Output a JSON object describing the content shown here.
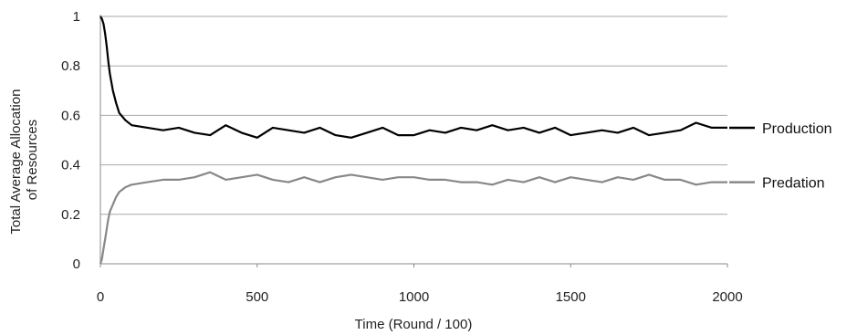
{
  "chart_data": {
    "type": "line",
    "title": "",
    "xlabel": "Time (Round / 100)",
    "ylabel_lines": [
      "Total Average Allocation",
      "of Resources"
    ],
    "xlim": [
      0,
      2000
    ],
    "ylim": [
      0,
      1
    ],
    "xticks": [
      "0",
      "500",
      "1000",
      "1500",
      "2000"
    ],
    "yticks": [
      "0",
      "0.2",
      "0.4",
      "0.6",
      "0.8",
      "1"
    ],
    "grid": "horizontal",
    "legend_placement": "right, inline labels",
    "series": [
      {
        "name": "Production",
        "color": "#000000",
        "x": [
          0,
          5,
          10,
          15,
          20,
          25,
          30,
          40,
          50,
          60,
          80,
          100,
          150,
          200,
          250,
          300,
          350,
          400,
          450,
          500,
          550,
          600,
          650,
          700,
          750,
          800,
          850,
          900,
          950,
          1000,
          1050,
          1100,
          1150,
          1200,
          1250,
          1300,
          1350,
          1400,
          1450,
          1500,
          1550,
          1600,
          1650,
          1700,
          1750,
          1800,
          1850,
          1900,
          1950,
          2000
        ],
        "values": [
          1.0,
          0.99,
          0.97,
          0.93,
          0.88,
          0.82,
          0.77,
          0.7,
          0.65,
          0.61,
          0.58,
          0.56,
          0.55,
          0.54,
          0.55,
          0.53,
          0.52,
          0.56,
          0.53,
          0.51,
          0.55,
          0.54,
          0.53,
          0.55,
          0.52,
          0.51,
          0.53,
          0.55,
          0.52,
          0.52,
          0.54,
          0.53,
          0.55,
          0.54,
          0.56,
          0.54,
          0.55,
          0.53,
          0.55,
          0.52,
          0.53,
          0.54,
          0.53,
          0.55,
          0.52,
          0.53,
          0.54,
          0.57,
          0.55,
          0.55
        ]
      },
      {
        "name": "Predation",
        "color": "#888888",
        "x": [
          0,
          5,
          10,
          15,
          20,
          25,
          30,
          40,
          50,
          60,
          80,
          100,
          150,
          200,
          250,
          300,
          350,
          400,
          450,
          500,
          550,
          600,
          650,
          700,
          750,
          800,
          850,
          900,
          950,
          1000,
          1050,
          1100,
          1150,
          1200,
          1250,
          1300,
          1350,
          1400,
          1450,
          1500,
          1550,
          1600,
          1650,
          1700,
          1750,
          1800,
          1850,
          1900,
          1950,
          2000
        ],
        "values": [
          0.0,
          0.02,
          0.06,
          0.1,
          0.14,
          0.18,
          0.21,
          0.24,
          0.27,
          0.29,
          0.31,
          0.32,
          0.33,
          0.34,
          0.34,
          0.35,
          0.37,
          0.34,
          0.35,
          0.36,
          0.34,
          0.33,
          0.35,
          0.33,
          0.35,
          0.36,
          0.35,
          0.34,
          0.35,
          0.35,
          0.34,
          0.34,
          0.33,
          0.33,
          0.32,
          0.34,
          0.33,
          0.35,
          0.33,
          0.35,
          0.34,
          0.33,
          0.35,
          0.34,
          0.36,
          0.34,
          0.34,
          0.32,
          0.33,
          0.33
        ]
      }
    ]
  }
}
